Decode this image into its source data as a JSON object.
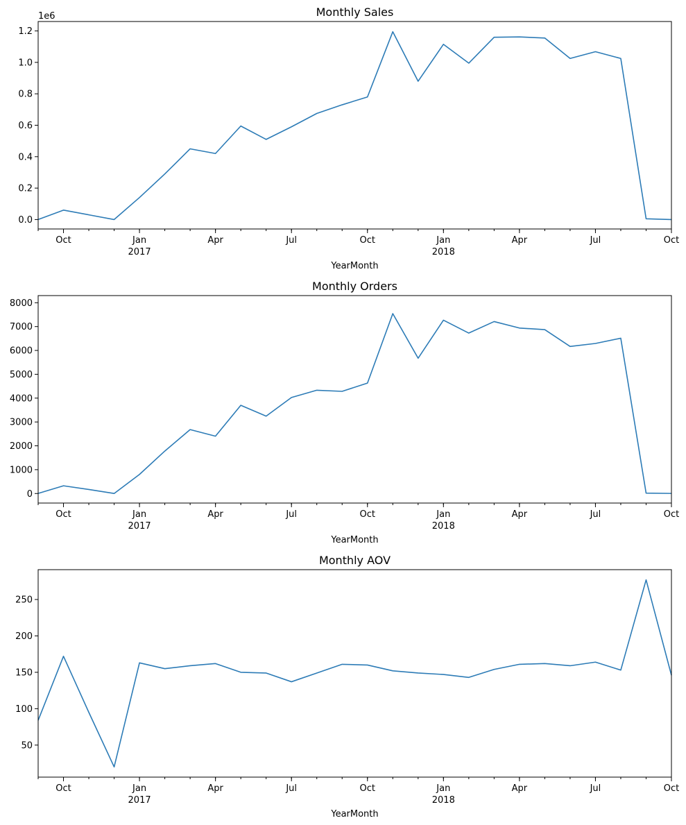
{
  "chart_data": [
    {
      "type": "line",
      "title": "Monthly Sales",
      "xlabel": "YearMonth",
      "ylabel": "",
      "offset_label": "1e6",
      "color": "#2c7bb6",
      "x": [
        "2016-09",
        "2016-10",
        "2016-11",
        "2016-12",
        "2017-01",
        "2017-02",
        "2017-03",
        "2017-04",
        "2017-05",
        "2017-06",
        "2017-07",
        "2017-08",
        "2017-09",
        "2017-10",
        "2017-11",
        "2017-12",
        "2018-01",
        "2018-02",
        "2018-03",
        "2018-04",
        "2018-05",
        "2018-06",
        "2018-07",
        "2018-08",
        "2018-09",
        "2018-10"
      ],
      "values": [
        0.0,
        0.06,
        0.03,
        0.0,
        0.14,
        0.29,
        0.45,
        0.42,
        0.595,
        0.51,
        0.59,
        0.675,
        0.73,
        0.78,
        1.195,
        0.88,
        1.115,
        0.995,
        1.16,
        1.162,
        1.155,
        1.025,
        1.068,
        1.025,
        0.005,
        0.0
      ],
      "ylim": [
        -0.06,
        1.26
      ],
      "yticks": [
        0.0,
        0.2,
        0.4,
        0.6,
        0.8,
        1.0,
        1.2
      ],
      "ytick_labels": [
        "0.0",
        "0.2",
        "0.4",
        "0.6",
        "0.8",
        "1.0",
        "1.2"
      ]
    },
    {
      "type": "line",
      "title": "Monthly Orders",
      "xlabel": "YearMonth",
      "ylabel": "",
      "color": "#2c7bb6",
      "x": [
        "2016-09",
        "2016-10",
        "2016-11",
        "2016-12",
        "2017-01",
        "2017-02",
        "2017-03",
        "2017-04",
        "2017-05",
        "2017-06",
        "2017-07",
        "2017-08",
        "2017-09",
        "2017-10",
        "2017-11",
        "2017-12",
        "2018-01",
        "2018-02",
        "2018-03",
        "2018-04",
        "2018-05",
        "2018-06",
        "2018-07",
        "2018-08",
        "2018-09",
        "2018-10"
      ],
      "values": [
        4,
        324,
        170,
        1,
        800,
        1780,
        2680,
        2404,
        3700,
        3245,
        4026,
        4331,
        4285,
        4631,
        7544,
        5673,
        7269,
        6728,
        7211,
        6939,
        6873,
        6167,
        6292,
        6512,
        16,
        4
      ],
      "ylim": [
        -400,
        8300
      ],
      "yticks": [
        0,
        1000,
        2000,
        3000,
        4000,
        5000,
        6000,
        7000,
        8000
      ],
      "ytick_labels": [
        "0",
        "1000",
        "2000",
        "3000",
        "4000",
        "5000",
        "6000",
        "7000",
        "8000"
      ]
    },
    {
      "type": "line",
      "title": "Monthly AOV",
      "xlabel": "YearMonth",
      "ylabel": "",
      "color": "#2c7bb6",
      "x": [
        "2016-09",
        "2016-10",
        "2016-11",
        "2016-12",
        "2017-01",
        "2017-02",
        "2017-03",
        "2017-04",
        "2017-05",
        "2017-06",
        "2017-07",
        "2017-08",
        "2017-09",
        "2017-10",
        "2017-11",
        "2017-12",
        "2018-01",
        "2018-02",
        "2018-03",
        "2018-04",
        "2018-05",
        "2018-06",
        "2018-07",
        "2018-08",
        "2018-09",
        "2018-10"
      ],
      "values": [
        84,
        172,
        95,
        20,
        163,
        155,
        159,
        162,
        150,
        149,
        137,
        149,
        161,
        160,
        152,
        149,
        147,
        143,
        154,
        161,
        162,
        159,
        164,
        153,
        277,
        146
      ],
      "ylim": [
        6,
        291
      ],
      "yticks": [
        50,
        100,
        150,
        200,
        250
      ],
      "ytick_labels": [
        "50",
        "100",
        "150",
        "200",
        "250"
      ]
    }
  ],
  "x_axis": {
    "major_ticks": [
      {
        "month": "2016-10",
        "label": "Oct",
        "year": ""
      },
      {
        "month": "2017-01",
        "label": "Jan",
        "year": "2017"
      },
      {
        "month": "2017-04",
        "label": "Apr",
        "year": ""
      },
      {
        "month": "2017-07",
        "label": "Jul",
        "year": ""
      },
      {
        "month": "2017-10",
        "label": "Oct",
        "year": ""
      },
      {
        "month": "2018-01",
        "label": "Jan",
        "year": "2018"
      },
      {
        "month": "2018-04",
        "label": "Apr",
        "year": ""
      },
      {
        "month": "2018-07",
        "label": "Jul",
        "year": ""
      },
      {
        "month": "2018-10",
        "label": "Oct",
        "year": ""
      }
    ]
  }
}
